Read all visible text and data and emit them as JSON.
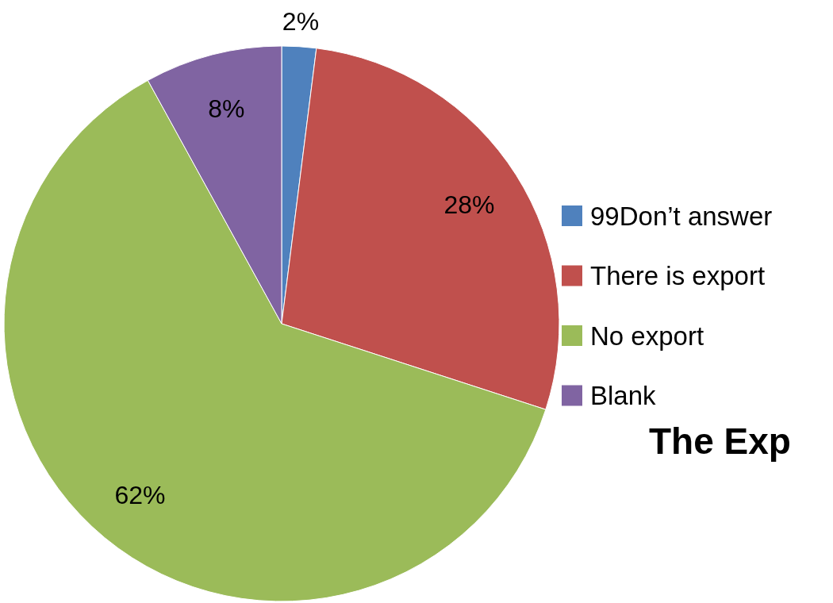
{
  "chart_data": {
    "type": "pie",
    "categories": [
      "99Don’t answer",
      "There is export",
      "No export",
      "Blank"
    ],
    "values": [
      2,
      28,
      62,
      8
    ],
    "colors": [
      "#4f81bd",
      "#c0504d",
      "#9bbb59",
      "#8064a2"
    ],
    "value_labels": [
      "2%",
      "28%",
      "62%",
      "8%"
    ],
    "legend": "right",
    "annotations": [
      "The Exp"
    ]
  }
}
